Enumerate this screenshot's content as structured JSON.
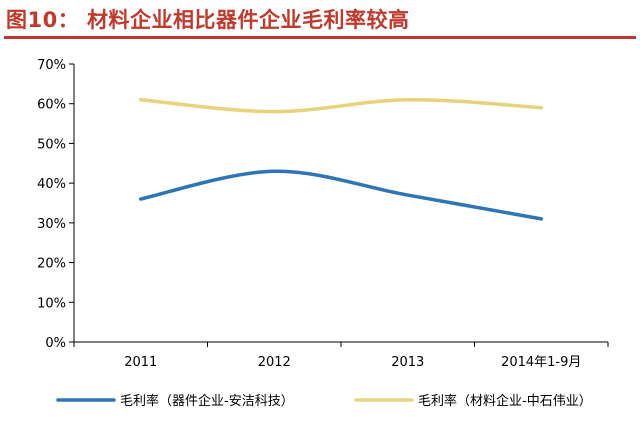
{
  "header": {
    "title": "图10： 材料企业相比器件企业毛利率较高"
  },
  "colors": {
    "title": "#c0392b",
    "series_blue": "#2e75b6",
    "series_yellow": "#e8d27a"
  },
  "chart_data": {
    "type": "line",
    "title": "",
    "xlabel": "",
    "ylabel": "",
    "categories": [
      "2011",
      "2012",
      "2013",
      "2014年1-9月"
    ],
    "ylim": [
      0,
      70
    ],
    "yticks": [
      0,
      10,
      20,
      30,
      40,
      50,
      60,
      70
    ],
    "ytick_labels": [
      "0%",
      "10%",
      "20%",
      "30%",
      "40%",
      "50%",
      "60%",
      "70%"
    ],
    "grid": false,
    "legend_position": "bottom",
    "series": [
      {
        "name": "毛利率（器件企业-安洁科技）",
        "values": [
          36,
          43,
          37,
          31
        ],
        "color": "#2e75b6"
      },
      {
        "name": "毛利率（材料企业-中石伟业）",
        "values": [
          61,
          58,
          61,
          59
        ],
        "color": "#e8d27a"
      }
    ]
  }
}
